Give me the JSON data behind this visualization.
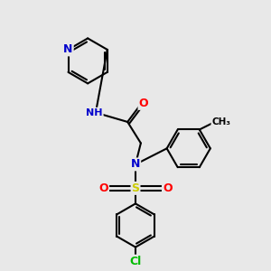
{
  "background_color": "#e8e8e8",
  "atom_colors": {
    "N": "#0000cc",
    "O": "#ff0000",
    "S": "#cccc00",
    "Cl": "#00bb00",
    "C": "#000000",
    "H": "#555555"
  },
  "line_color": "#000000",
  "line_width": 1.5
}
